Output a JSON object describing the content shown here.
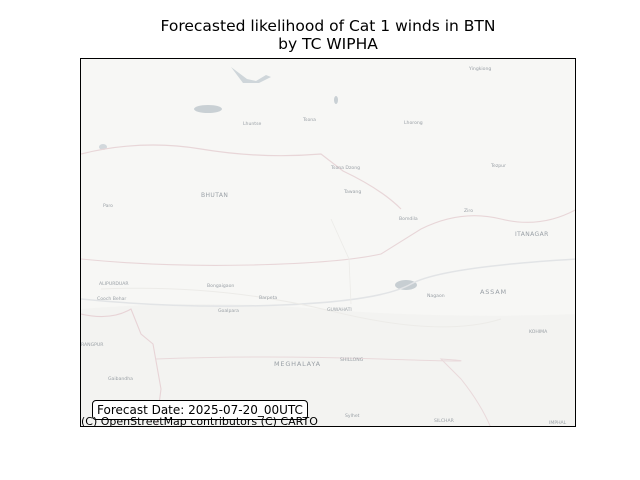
{
  "title": {
    "line1": "Forecasted likelihood of Cat 1 winds in BTN",
    "line2": "by TC WIPHA"
  },
  "map": {
    "place_labels": {
      "lhuntse": "Lhuntse",
      "tsona": "Tsona",
      "lhorong": "Lhorong",
      "yingkiong": "Yingkiong",
      "tsona_dzong": "Tsona Dzong",
      "tawang": "Tawang",
      "bhutan": "BHUTAN",
      "paro": "Paro",
      "bomdila": "Bomdila",
      "itanagar": "ITANAGAR",
      "ziro": "Ziro",
      "alipurduar": "ALIPURDUAR",
      "bongaigaon": "Bongaigaon",
      "barpeta": "Barpeta",
      "guwahati": "GUWAHATI",
      "nagaon": "Nagaon",
      "assam": "ASSAM",
      "cooch_behar": "Cooch Behar",
      "goalpara": "Goalpara",
      "rangpur": "RANGPUR",
      "meghalaya": "MEGHALAYA",
      "shillong": "SHILLONG",
      "gaibandha": "Gaibandha",
      "sylhet": "Sylhet",
      "silchar": "SILCHAR",
      "imphal": "IMPHAL",
      "tezpur": "Tezpur",
      "kohima": "KOHIMA"
    }
  },
  "forecast_date": "Forecast Date: 2025-07-20_00UTC",
  "attribution": "(C) OpenStreetMap contributors (C) CARTO"
}
